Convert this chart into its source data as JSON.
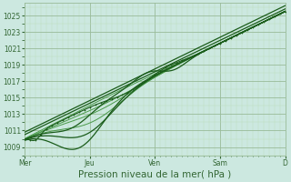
{
  "xlabel": "Pression niveau de la mer( hPa )",
  "bg_color": "#cce8e0",
  "grid_major_color": "#99bb99",
  "grid_minor_color": "#bbddbb",
  "line_color_dark": "#1a5c1a",
  "line_color_light": "#4a9a4a",
  "ylim": [
    1008.0,
    1026.5
  ],
  "yticks": [
    1009,
    1011,
    1013,
    1015,
    1017,
    1019,
    1021,
    1023,
    1025
  ],
  "day_labels": [
    "Mer",
    "Jeu",
    "Ven",
    "Sam",
    "D"
  ],
  "day_positions": [
    0,
    48,
    96,
    144,
    192
  ],
  "num_points": 193,
  "tick_color": "#336633",
  "xlabel_fontsize": 7.5
}
